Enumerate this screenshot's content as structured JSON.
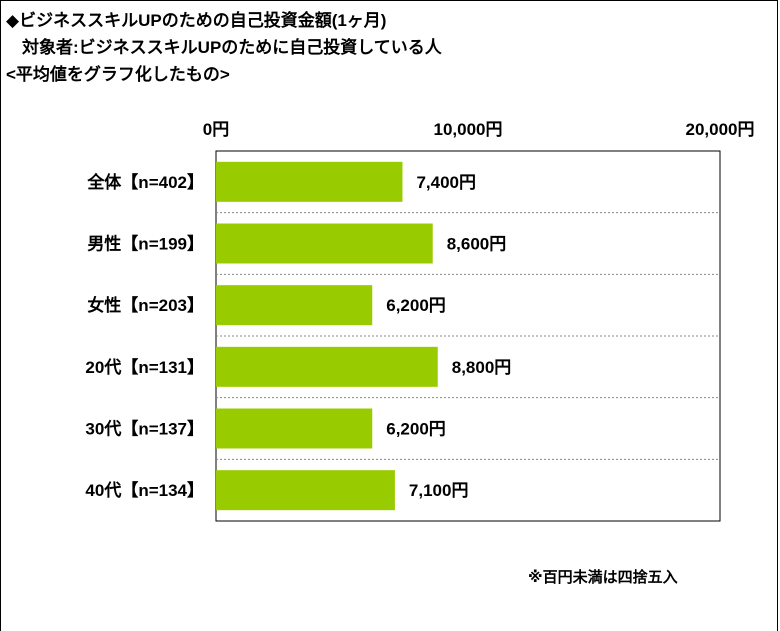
{
  "header": {
    "title": "◆ビジネススキルUPのための自己投資金額(1ヶ月)",
    "subtitle": "対象者:ビジネススキルUPのために自己投資している人",
    "note": "<平均値をグラフ化したもの>"
  },
  "footnote": "※百円未満は四捨五入",
  "colors": {
    "bar": "#99cc00"
  },
  "chart_data": {
    "type": "bar",
    "orientation": "horizontal",
    "title": "ビジネススキルUPのための自己投資金額(1ヶ月)",
    "categories": [
      "全体【n=402】",
      "男性【n=199】",
      "女性【n=203】",
      "20代【n=131】",
      "30代【n=137】",
      "40代【n=134】"
    ],
    "values": [
      7400,
      8600,
      6200,
      8800,
      6200,
      7100
    ],
    "value_labels": [
      "7,400円",
      "8,600円",
      "6,200円",
      "8,800円",
      "6,200円",
      "7,100円"
    ],
    "xlim": [
      0,
      20000
    ],
    "x_ticks": [
      0,
      10000,
      20000
    ],
    "x_tick_labels": [
      "0円",
      "10,000円",
      "20,000円"
    ],
    "tick_position": "top",
    "grid": "dashed row separators"
  }
}
